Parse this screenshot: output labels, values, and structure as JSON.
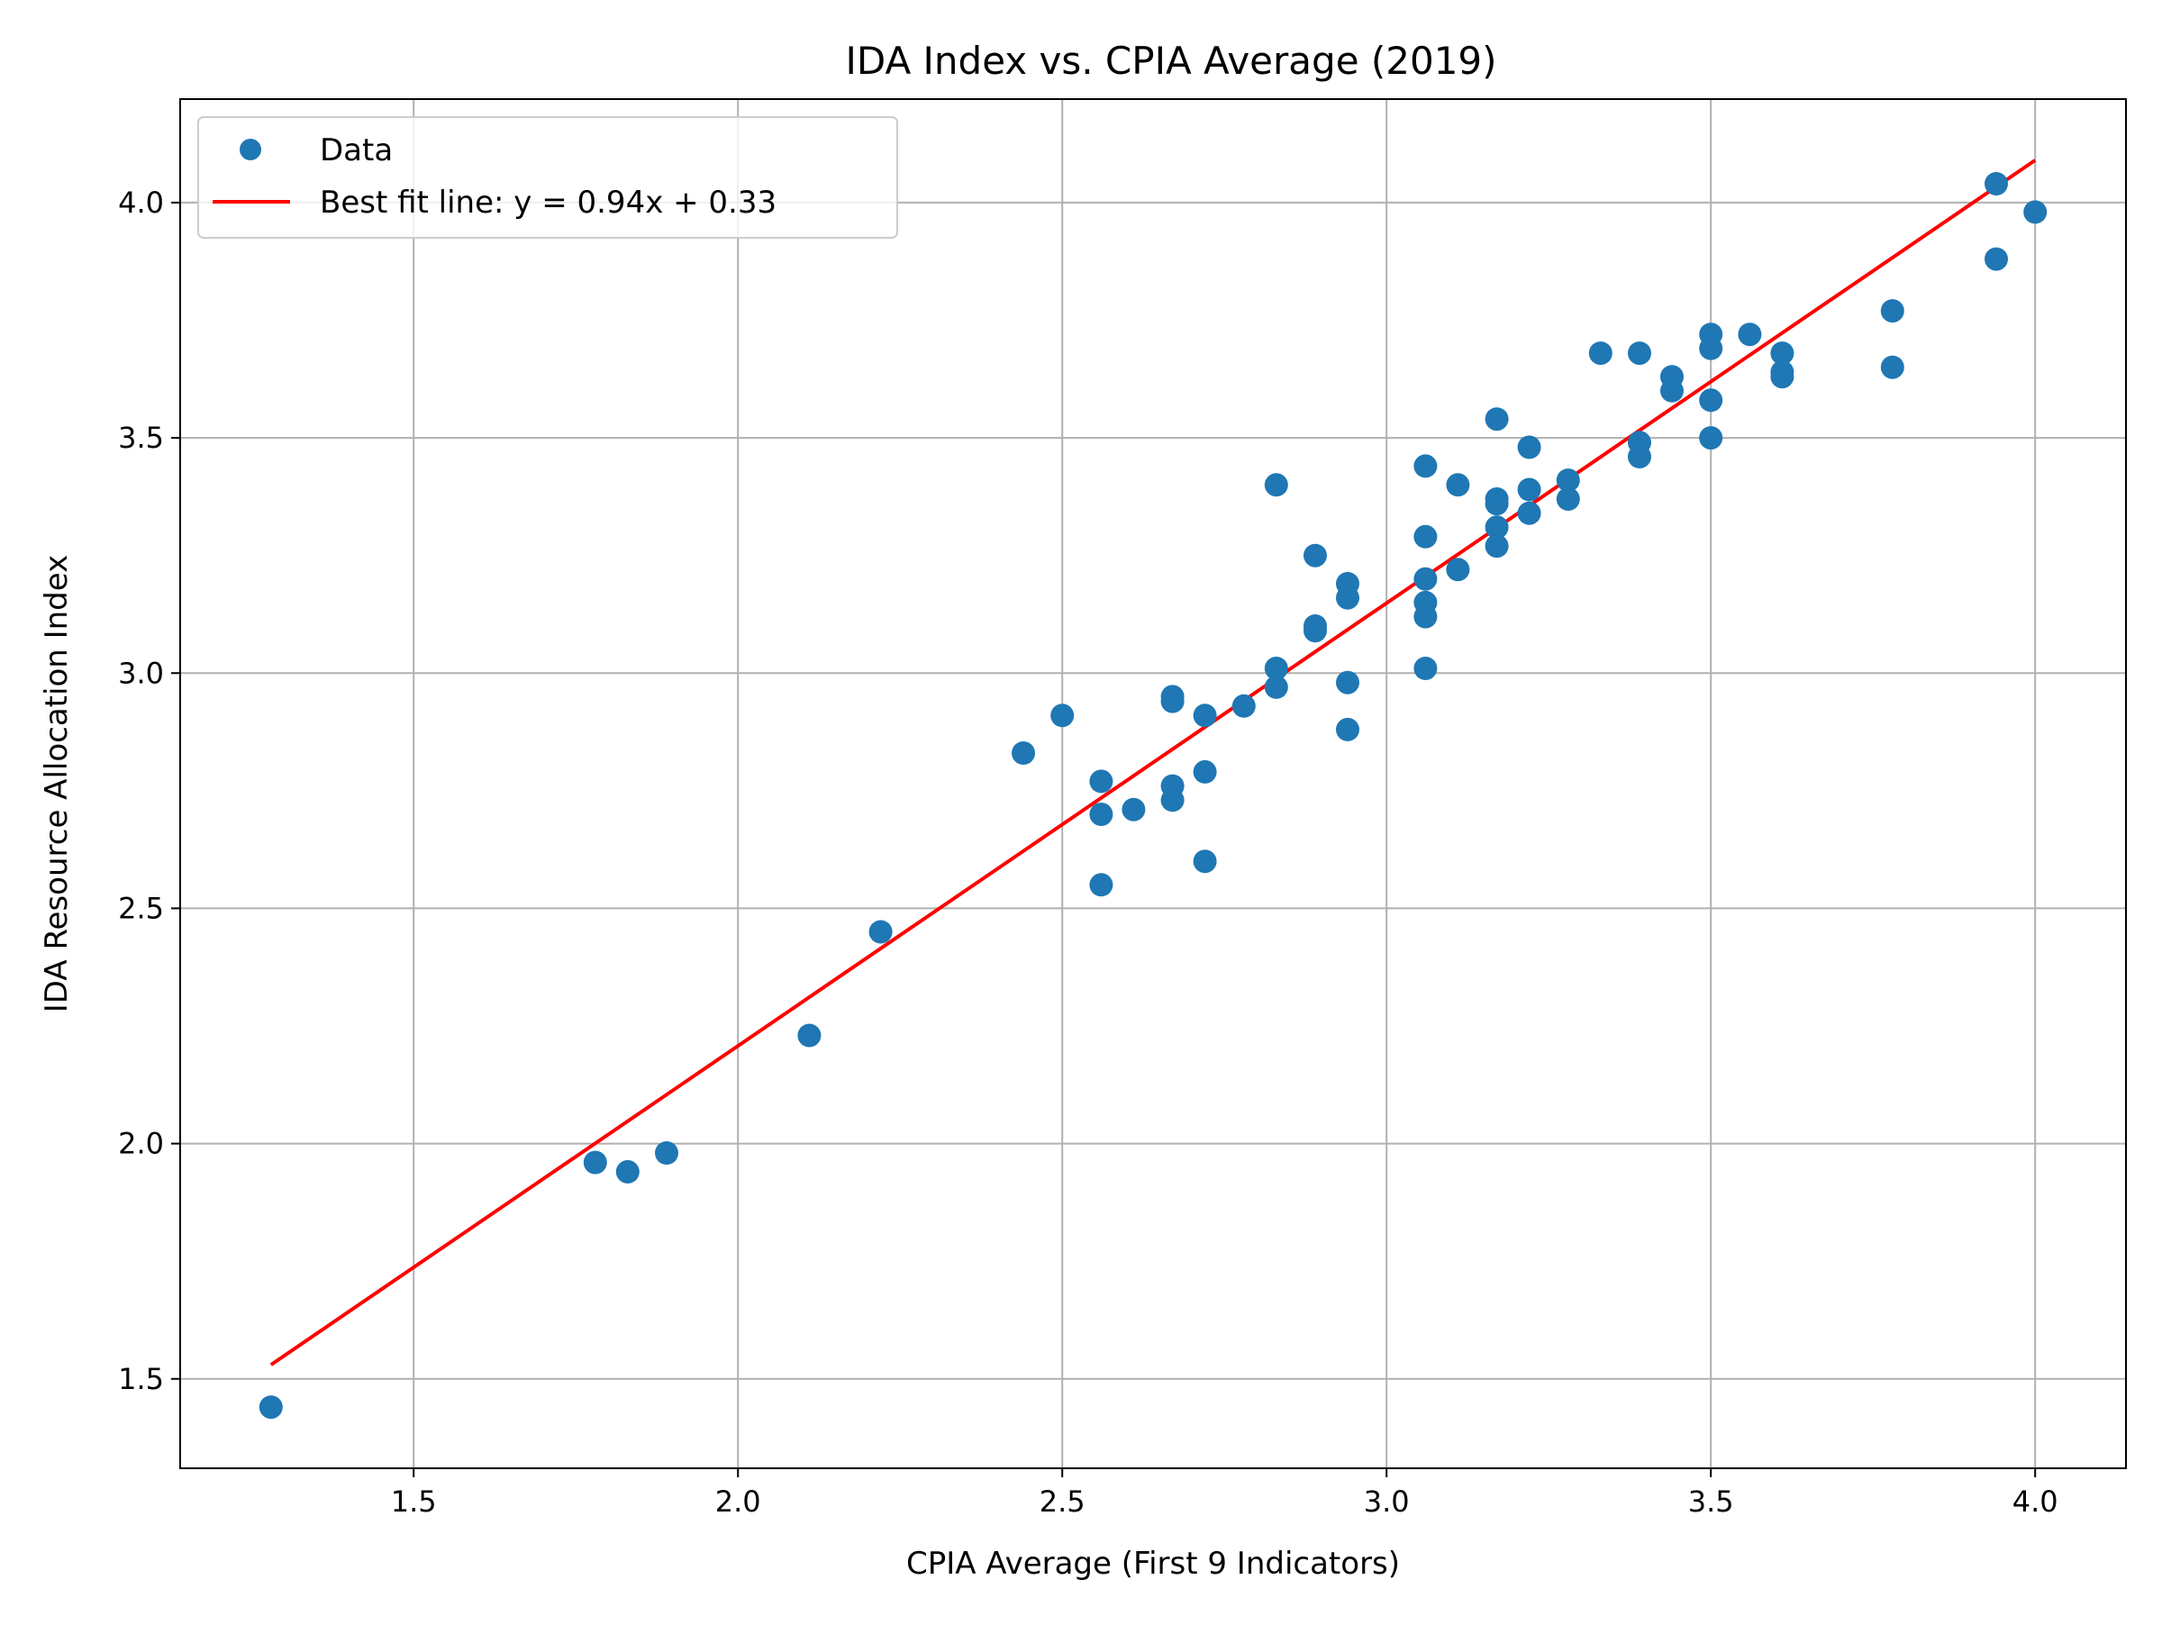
{
  "chart_data": {
    "type": "scatter",
    "title": "IDA Index vs. CPIA Average (2019)",
    "xlabel": "CPIA Average (First 9 Indicators)",
    "ylabel": "IDA Resource Allocation Index",
    "xlim": [
      1.14,
      4.14
    ],
    "ylim": [
      1.31,
      4.22
    ],
    "xticks": [
      1.5,
      2.0,
      2.5,
      3.0,
      3.5,
      4.0
    ],
    "xtick_labels": [
      "1.5",
      "2.0",
      "2.5",
      "3.0",
      "3.5",
      "4.0"
    ],
    "yticks": [
      1.5,
      2.0,
      2.5,
      3.0,
      3.5,
      4.0
    ],
    "ytick_labels": [
      "1.5",
      "2.0",
      "2.5",
      "3.0",
      "3.5",
      "4.0"
    ],
    "grid": true,
    "legend_position": "top-left",
    "series": [
      {
        "name": "Data",
        "kind": "scatter",
        "color": "#1f77b4",
        "points": [
          [
            1.28,
            1.44
          ],
          [
            1.78,
            1.96
          ],
          [
            1.83,
            1.94
          ],
          [
            1.89,
            1.98
          ],
          [
            2.11,
            2.23
          ],
          [
            2.22,
            2.45
          ],
          [
            2.44,
            2.83
          ],
          [
            2.5,
            2.91
          ],
          [
            2.56,
            2.77
          ],
          [
            2.56,
            2.7
          ],
          [
            2.56,
            2.55
          ],
          [
            2.61,
            2.71
          ],
          [
            2.67,
            2.95
          ],
          [
            2.67,
            2.94
          ],
          [
            2.67,
            2.76
          ],
          [
            2.67,
            2.73
          ],
          [
            2.72,
            2.91
          ],
          [
            2.72,
            2.79
          ],
          [
            2.72,
            2.6
          ],
          [
            2.78,
            2.93
          ],
          [
            2.83,
            3.4
          ],
          [
            2.83,
            3.01
          ],
          [
            2.83,
            2.97
          ],
          [
            2.89,
            3.25
          ],
          [
            2.89,
            3.1
          ],
          [
            2.89,
            3.09
          ],
          [
            2.94,
            3.19
          ],
          [
            2.94,
            3.16
          ],
          [
            2.94,
            2.98
          ],
          [
            2.94,
            2.88
          ],
          [
            3.06,
            3.44
          ],
          [
            3.06,
            3.29
          ],
          [
            3.06,
            3.2
          ],
          [
            3.06,
            3.15
          ],
          [
            3.06,
            3.12
          ],
          [
            3.06,
            3.01
          ],
          [
            3.11,
            3.4
          ],
          [
            3.11,
            3.22
          ],
          [
            3.17,
            3.54
          ],
          [
            3.17,
            3.37
          ],
          [
            3.17,
            3.36
          ],
          [
            3.17,
            3.31
          ],
          [
            3.17,
            3.27
          ],
          [
            3.22,
            3.48
          ],
          [
            3.22,
            3.39
          ],
          [
            3.22,
            3.34
          ],
          [
            3.28,
            3.41
          ],
          [
            3.28,
            3.37
          ],
          [
            3.33,
            3.68
          ],
          [
            3.39,
            3.68
          ],
          [
            3.39,
            3.49
          ],
          [
            3.39,
            3.46
          ],
          [
            3.44,
            3.63
          ],
          [
            3.44,
            3.6
          ],
          [
            3.5,
            3.72
          ],
          [
            3.5,
            3.69
          ],
          [
            3.5,
            3.58
          ],
          [
            3.5,
            3.5
          ],
          [
            3.56,
            3.72
          ],
          [
            3.61,
            3.68
          ],
          [
            3.61,
            3.64
          ],
          [
            3.61,
            3.63
          ],
          [
            3.78,
            3.77
          ],
          [
            3.78,
            3.65
          ],
          [
            3.94,
            4.04
          ],
          [
            3.94,
            3.88
          ],
          [
            4.0,
            3.98
          ]
        ]
      },
      {
        "name": "Best fit line: y = 0.94x + 0.33",
        "kind": "line",
        "color": "#ff0000",
        "points": [
          [
            1.28,
            1.53
          ],
          [
            4.0,
            4.09
          ]
        ]
      }
    ]
  }
}
